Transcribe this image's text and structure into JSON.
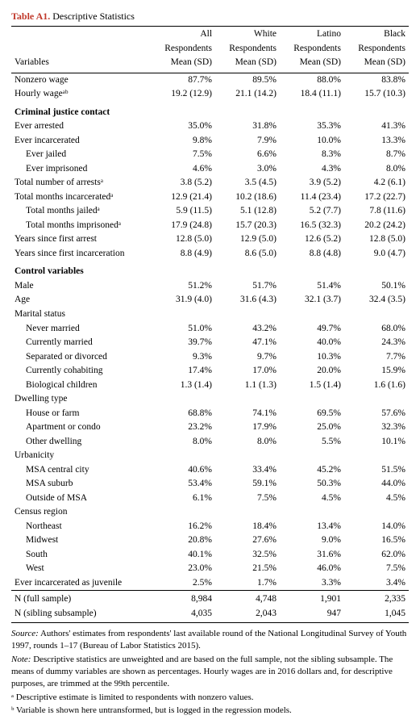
{
  "title_label": "Table A1.",
  "title_text": "Descriptive Statistics",
  "columns": {
    "var": "Variables",
    "c1a": "All",
    "c1b": "Respondents",
    "c1c": "Mean (SD)",
    "c2a": "White",
    "c2b": "Respondents",
    "c2c": "Mean (SD)",
    "c3a": "Latino",
    "c3b": "Respondents",
    "c3c": "Mean (SD)",
    "c4a": "Black",
    "c4b": "Respondents",
    "c4c": "Mean (SD)"
  },
  "rows": [
    {
      "label": "Nonzero wage",
      "v": [
        "87.7%",
        "89.5%",
        "88.0%",
        "83.8%"
      ],
      "indent": 0
    },
    {
      "label": "Hourly wageᵃᵇ",
      "v": [
        "19.2 (12.9)",
        "21.1 (14.2)",
        "18.4 (11.1)",
        "15.7 (10.3)"
      ],
      "indent": 0
    }
  ],
  "section1": "Criminal justice contact",
  "rows1": [
    {
      "label": "Ever arrested",
      "v": [
        "35.0%",
        "31.8%",
        "35.3%",
        "41.3%"
      ],
      "indent": 0
    },
    {
      "label": "Ever incarcerated",
      "v": [
        "9.8%",
        "7.9%",
        "10.0%",
        "13.3%"
      ],
      "indent": 0
    },
    {
      "label": "Ever jailed",
      "v": [
        "7.5%",
        "6.6%",
        "8.3%",
        "8.7%"
      ],
      "indent": 1
    },
    {
      "label": "Ever imprisoned",
      "v": [
        "4.6%",
        "3.0%",
        "4.3%",
        "8.0%"
      ],
      "indent": 1
    },
    {
      "label": "Total number of arrestsᵃ",
      "v": [
        "3.8 (5.2)",
        "3.5 (4.5)",
        "3.9 (5.2)",
        "4.2 (6.1)"
      ],
      "indent": 0
    },
    {
      "label": "Total months incarceratedᵃ",
      "v": [
        "12.9 (21.4)",
        "10.2 (18.6)",
        "11.4 (23.4)",
        "17.2 (22.7)"
      ],
      "indent": 0
    },
    {
      "label": "Total months jailedᵃ",
      "v": [
        "5.9 (11.5)",
        "5.1 (12.8)",
        "5.2 (7.7)",
        "7.8 (11.6)"
      ],
      "indent": 1
    },
    {
      "label": "Total months imprisonedᵃ",
      "v": [
        "17.9 (24.8)",
        "15.7 (20.3)",
        "16.5 (32.3)",
        "20.2 (24.2)"
      ],
      "indent": 1
    },
    {
      "label": "Years since first arrest",
      "v": [
        "12.8 (5.0)",
        "12.9 (5.0)",
        "12.6 (5.2)",
        "12.8 (5.0)"
      ],
      "indent": 0
    },
    {
      "label": "Years since first incarceration",
      "v": [
        "8.8 (4.9)",
        "8.6 (5.0)",
        "8.8 (4.8)",
        "9.0 (4.7)"
      ],
      "indent": 0
    }
  ],
  "section2": "Control variables",
  "rows2": [
    {
      "label": "Male",
      "v": [
        "51.2%",
        "51.7%",
        "51.4%",
        "50.1%"
      ],
      "indent": 0
    },
    {
      "label": "Age",
      "v": [
        "31.9 (4.0)",
        "31.6 (4.3)",
        "32.1 (3.7)",
        "32.4 (3.5)"
      ],
      "indent": 0
    },
    {
      "label": "Marital status",
      "v": [
        "",
        "",
        "",
        ""
      ],
      "indent": 0
    },
    {
      "label": "Never married",
      "v": [
        "51.0%",
        "43.2%",
        "49.7%",
        "68.0%"
      ],
      "indent": 1
    },
    {
      "label": "Currently married",
      "v": [
        "39.7%",
        "47.1%",
        "40.0%",
        "24.3%"
      ],
      "indent": 1
    },
    {
      "label": "Separated or divorced",
      "v": [
        "9.3%",
        "9.7%",
        "10.3%",
        "7.7%"
      ],
      "indent": 1
    },
    {
      "label": "Currently cohabiting",
      "v": [
        "17.4%",
        "17.0%",
        "20.0%",
        "15.9%"
      ],
      "indent": 1
    },
    {
      "label": "Biological children",
      "v": [
        "1.3 (1.4)",
        "1.1 (1.3)",
        "1.5 (1.4)",
        "1.6 (1.6)"
      ],
      "indent": 1
    },
    {
      "label": "Dwelling type",
      "v": [
        "",
        "",
        "",
        ""
      ],
      "indent": 0
    },
    {
      "label": "House or farm",
      "v": [
        "68.8%",
        "74.1%",
        "69.5%",
        "57.6%"
      ],
      "indent": 1
    },
    {
      "label": "Apartment or condo",
      "v": [
        "23.2%",
        "17.9%",
        "25.0%",
        "32.3%"
      ],
      "indent": 1
    },
    {
      "label": "Other dwelling",
      "v": [
        "8.0%",
        "8.0%",
        "5.5%",
        "10.1%"
      ],
      "indent": 1
    },
    {
      "label": "Urbanicity",
      "v": [
        "",
        "",
        "",
        ""
      ],
      "indent": 0
    },
    {
      "label": "MSA central city",
      "v": [
        "40.6%",
        "33.4%",
        "45.2%",
        "51.5%"
      ],
      "indent": 1
    },
    {
      "label": "MSA suburb",
      "v": [
        "53.4%",
        "59.1%",
        "50.3%",
        "44.0%"
      ],
      "indent": 1
    },
    {
      "label": "Outside of MSA",
      "v": [
        "6.1%",
        "7.5%",
        "4.5%",
        "4.5%"
      ],
      "indent": 1
    },
    {
      "label": "Census region",
      "v": [
        "",
        "",
        "",
        ""
      ],
      "indent": 0
    },
    {
      "label": "Northeast",
      "v": [
        "16.2%",
        "18.4%",
        "13.4%",
        "14.0%"
      ],
      "indent": 1
    },
    {
      "label": "Midwest",
      "v": [
        "20.8%",
        "27.6%",
        "9.0%",
        "16.5%"
      ],
      "indent": 1
    },
    {
      "label": "South",
      "v": [
        "40.1%",
        "32.5%",
        "31.6%",
        "62.0%"
      ],
      "indent": 1
    },
    {
      "label": "West",
      "v": [
        "23.0%",
        "21.5%",
        "46.0%",
        "7.5%"
      ],
      "indent": 1
    },
    {
      "label": "Ever incarcerated as juvenile",
      "v": [
        "2.5%",
        "1.7%",
        "3.3%",
        "3.4%"
      ],
      "indent": 0
    }
  ],
  "nrows": [
    {
      "label": "N (full sample)",
      "v": [
        "8,984",
        "4,748",
        "1,901",
        "2,335"
      ]
    },
    {
      "label": "N (sibling subsample)",
      "v": [
        "4,035",
        "2,043",
        "947",
        "1,045"
      ]
    }
  ],
  "notes": {
    "source_label": "Source:",
    "source_text": "Authors' estimates from respondents' last available round of the National Longitudinal Survey of Youth 1997, rounds 1–17 (Bureau of Labor Statistics 2015).",
    "note_label": "Note:",
    "note_text": "Descriptive statistics are unweighted and are based on the full sample, not the sibling subsample. The means of dummy variables are shown as percentages. Hourly wages are in 2016 dollars and, for descriptive purposes, are trimmed at the 99th percentile.",
    "fn_a": "ᵃ Descriptive estimate is limited to respondents with nonzero values.",
    "fn_b": "ᵇ Variable is shown here untransformed, but is logged in the regression models."
  },
  "style": {
    "accent_color": "#c0392b",
    "text_color": "#000000",
    "background_color": "#ffffff",
    "rule_color": "#000000",
    "base_font_size": 12,
    "table_font_size": 11.5,
    "notes_font_size": 11
  }
}
